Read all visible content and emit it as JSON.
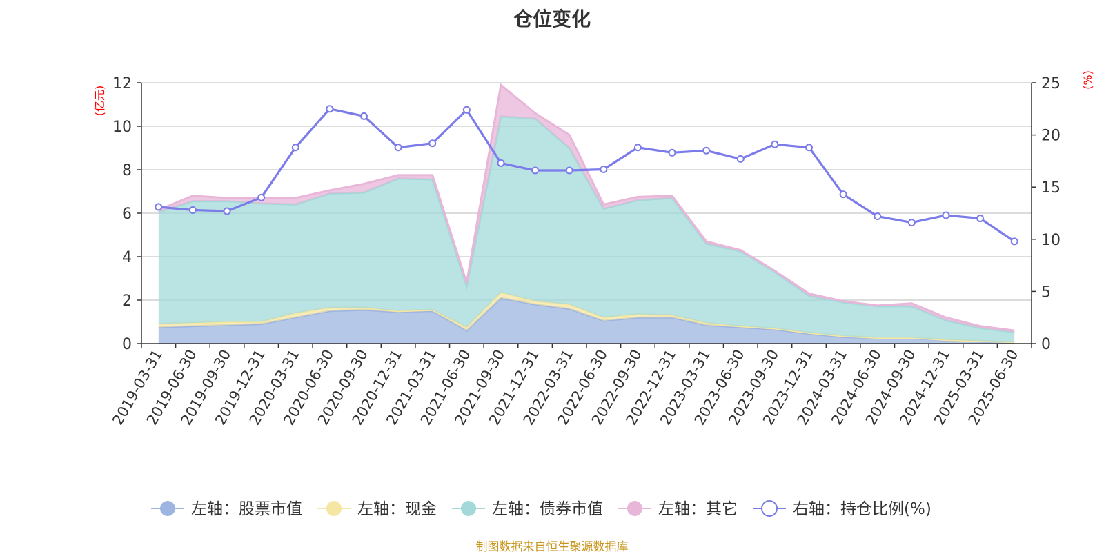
{
  "title": "仓位变化",
  "source_note": "制图数据来自恒生聚源数据库",
  "chart_data": {
    "type": "area",
    "categories": [
      "2019-03-31",
      "2019-06-30",
      "2019-09-30",
      "2019-12-31",
      "2020-03-31",
      "2020-06-30",
      "2020-09-30",
      "2020-12-31",
      "2021-03-31",
      "2021-06-30",
      "2021-09-30",
      "2021-12-31",
      "2022-03-31",
      "2022-06-30",
      "2022-09-30",
      "2022-12-31",
      "2023-03-31",
      "2023-06-30",
      "2023-09-30",
      "2023-12-31",
      "2024-03-31",
      "2024-06-30",
      "2024-09-30",
      "2024-12-31",
      "2025-03-31",
      "2025-06-30"
    ],
    "left_axis": {
      "unit_label": "(亿元)",
      "ylim": [
        0,
        12
      ],
      "ticks": [
        0,
        2,
        4,
        6,
        8,
        10,
        12
      ]
    },
    "right_axis": {
      "unit_label": "(%)",
      "ylim": [
        0,
        25
      ],
      "ticks": [
        0,
        5,
        10,
        15,
        20,
        25
      ]
    },
    "stacked": true,
    "grid": true,
    "legend_position": "bottom",
    "series": [
      {
        "name": "左轴：股票市值",
        "axis": "left",
        "kind": "area",
        "color": "#9db5e0",
        "values": [
          0.75,
          0.8,
          0.85,
          0.9,
          1.2,
          1.5,
          1.55,
          1.45,
          1.5,
          0.6,
          2.1,
          1.8,
          1.6,
          1.05,
          1.2,
          1.2,
          0.85,
          0.75,
          0.65,
          0.45,
          0.3,
          0.25,
          0.25,
          0.15,
          0.1,
          0.05
        ]
      },
      {
        "name": "左轴：现金",
        "axis": "left",
        "kind": "area",
        "color": "#f5e6a3",
        "values": [
          0.15,
          0.15,
          0.15,
          0.1,
          0.2,
          0.15,
          0.1,
          0.05,
          0.05,
          0.15,
          0.25,
          0.15,
          0.2,
          0.15,
          0.15,
          0.1,
          0.1,
          0.05,
          0.05,
          0.05,
          0.05,
          0.02,
          0.02,
          0.02,
          0.02,
          0.02
        ]
      },
      {
        "name": "左轴：债券市值",
        "axis": "left",
        "kind": "area",
        "color": "#a3d9d9",
        "values": [
          5.15,
          5.6,
          5.55,
          5.45,
          5.0,
          5.25,
          5.3,
          6.1,
          6.0,
          1.9,
          8.1,
          8.4,
          7.2,
          5.0,
          5.25,
          5.4,
          3.65,
          3.45,
          2.6,
          1.7,
          1.55,
          1.45,
          1.45,
          0.9,
          0.6,
          0.45
        ]
      },
      {
        "name": "左轴：其它",
        "axis": "left",
        "kind": "area",
        "color": "#e8b6d8",
        "values": [
          0.1,
          0.25,
          0.15,
          0.25,
          0.3,
          0.15,
          0.4,
          0.15,
          0.2,
          0.15,
          1.45,
          0.25,
          0.6,
          0.2,
          0.15,
          0.1,
          0.1,
          0.05,
          0.05,
          0.1,
          0.05,
          0.03,
          0.13,
          0.13,
          0.08,
          0.08
        ]
      },
      {
        "name": "右轴：持仓比例(%)",
        "axis": "right",
        "kind": "line",
        "color": "#7b7bea",
        "values": [
          13.1,
          12.8,
          12.7,
          14.0,
          18.8,
          22.5,
          21.8,
          18.8,
          19.2,
          22.4,
          17.3,
          16.6,
          16.6,
          16.7,
          18.8,
          18.3,
          18.5,
          17.7,
          19.1,
          18.8,
          14.3,
          12.2,
          11.6,
          12.3,
          12.0,
          9.8
        ]
      }
    ]
  }
}
